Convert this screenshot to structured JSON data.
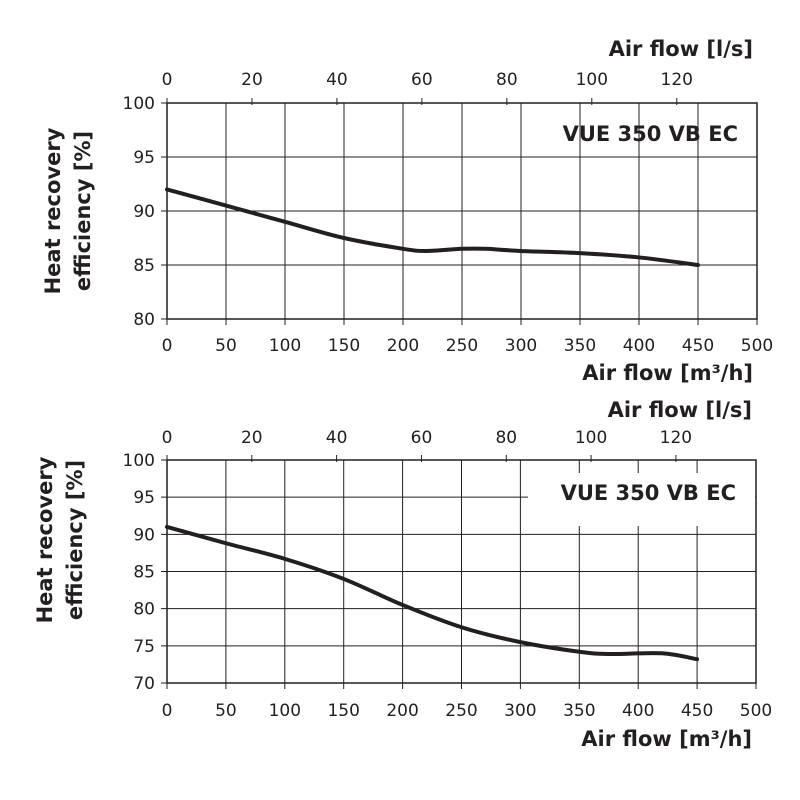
{
  "chart_data": [
    {
      "type": "line",
      "title": "VUE 350 VB EC",
      "xlabel": "Air flow [m³/h]",
      "x2label": "Air flow [l/s]",
      "ylabel_lines": [
        "Heat recovery",
        "efficiency [%]"
      ],
      "xlim": [
        0,
        500
      ],
      "x2lim": [
        0,
        138.9
      ],
      "ylim": [
        80,
        100
      ],
      "xticks": [
        "0",
        "50",
        "100",
        "150",
        "200",
        "250",
        "300",
        "350",
        "400",
        "450",
        "500"
      ],
      "x2ticks": [
        "0",
        "20",
        "40",
        "60",
        "80",
        "100",
        "120"
      ],
      "yticks": [
        "80",
        "85",
        "90",
        "95",
        "100"
      ],
      "grid": true,
      "series": [
        {
          "name": "VUE 350 VB EC",
          "x": [
            0,
            50,
            100,
            150,
            200,
            220,
            250,
            270,
            300,
            350,
            400,
            450
          ],
          "y": [
            92,
            90.5,
            89,
            87.5,
            86.5,
            86.3,
            86.5,
            86.5,
            86.3,
            86.1,
            85.7,
            85
          ]
        }
      ]
    },
    {
      "type": "line",
      "title": "VUE 350 VB EC",
      "xlabel": "Air flow [m³/h]",
      "x2label": "Air flow [l/s]",
      "ylabel_lines": [
        "Heat recovery",
        "efficiency [%]"
      ],
      "xlim": [
        0,
        500
      ],
      "x2lim": [
        0,
        138.9
      ],
      "ylim": [
        70,
        100
      ],
      "xticks": [
        "0",
        "50",
        "100",
        "150",
        "200",
        "250",
        "300",
        "350",
        "400",
        "450",
        "500"
      ],
      "x2ticks": [
        "0",
        "20",
        "40",
        "60",
        "80",
        "100",
        "120"
      ],
      "yticks": [
        "70",
        "75",
        "80",
        "85",
        "90",
        "95",
        "100"
      ],
      "grid": true,
      "series": [
        {
          "name": "VUE 350 VB EC",
          "x": [
            0,
            50,
            100,
            150,
            200,
            250,
            300,
            350,
            375,
            420,
            450
          ],
          "y": [
            91,
            88.8,
            86.7,
            84,
            80.5,
            77.5,
            75.5,
            74.2,
            73.9,
            74,
            73.2
          ]
        }
      ]
    }
  ],
  "colors": {
    "ink": "#231f20",
    "grid": "#231f20",
    "background": "#ffffff"
  }
}
